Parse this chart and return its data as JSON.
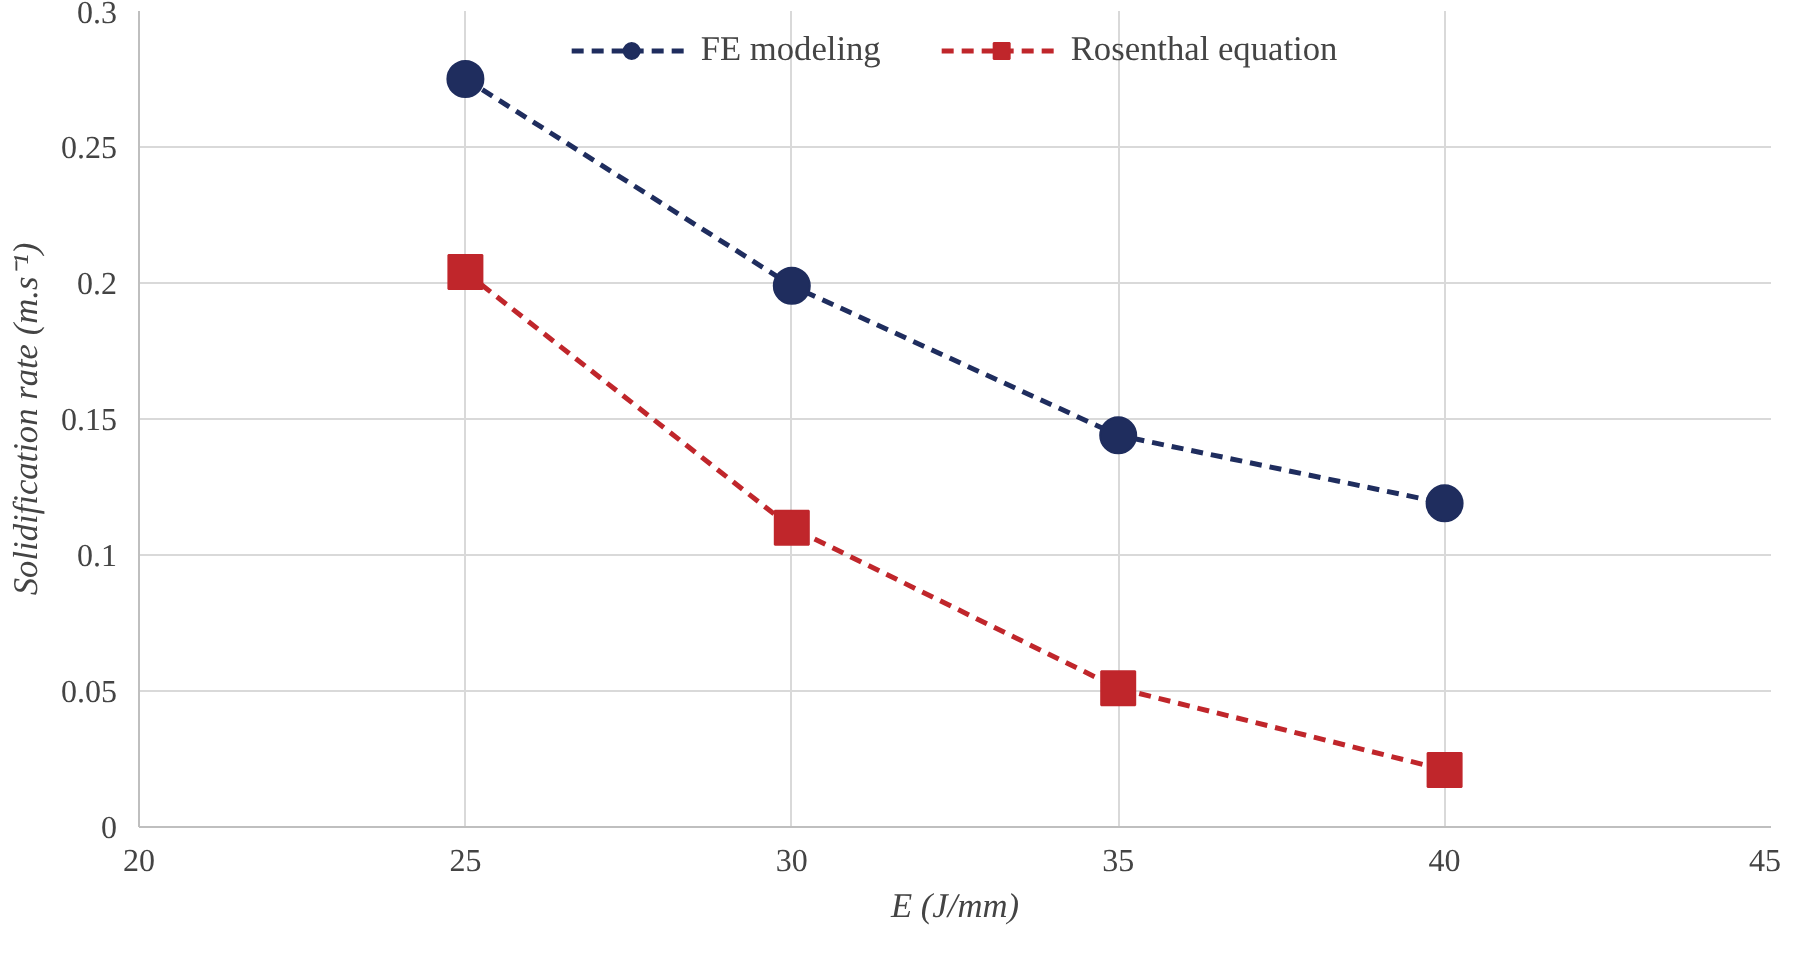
{
  "chart_data": {
    "type": "line",
    "xlabel": "E (J/mm)",
    "ylabel": "Solidification rate (m.s⁻¹)",
    "x": [
      25,
      30,
      35,
      40
    ],
    "series": [
      {
        "name": "FE modeling",
        "color": "#1f2d5e",
        "marker": "circle",
        "values": [
          0.275,
          0.199,
          0.144,
          0.119
        ]
      },
      {
        "name": "Rosenthal equation",
        "color": "#c0262b",
        "marker": "square",
        "values": [
          0.204,
          0.11,
          0.051,
          0.021
        ]
      }
    ],
    "xlim": [
      20,
      45
    ],
    "xticks": [
      20,
      25,
      30,
      35,
      40,
      45
    ],
    "ylim": [
      0,
      0.3
    ],
    "yticks": [
      0,
      0.05,
      0.1,
      0.15,
      0.2,
      0.25,
      0.3
    ],
    "grid": true,
    "legend": "top",
    "line_style": "dashed"
  }
}
